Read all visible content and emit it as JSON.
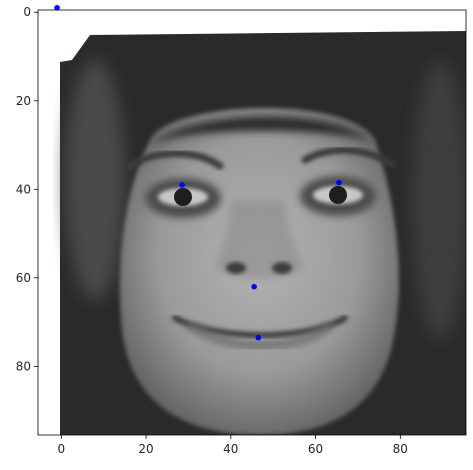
{
  "chart_data": {
    "type": "scatter",
    "title": "",
    "xlabel": "",
    "ylabel": "",
    "xlim": [
      -5.5,
      95.5
    ],
    "ylim": [
      95.5,
      -0.5
    ],
    "y_inverted": true,
    "background_image": "grayscale-face-photo",
    "xticks": [
      0,
      20,
      40,
      60,
      80
    ],
    "yticks": [
      0,
      20,
      40,
      60,
      80
    ],
    "grid": false,
    "legend": "none",
    "point_color": "#0000ff",
    "points": [
      {
        "x": -1,
        "y": -1
      },
      {
        "x": 28.5,
        "y": 39
      },
      {
        "x": 65.5,
        "y": 38.5
      },
      {
        "x": 45.5,
        "y": 62
      },
      {
        "x": 46.5,
        "y": 73.5
      }
    ]
  }
}
